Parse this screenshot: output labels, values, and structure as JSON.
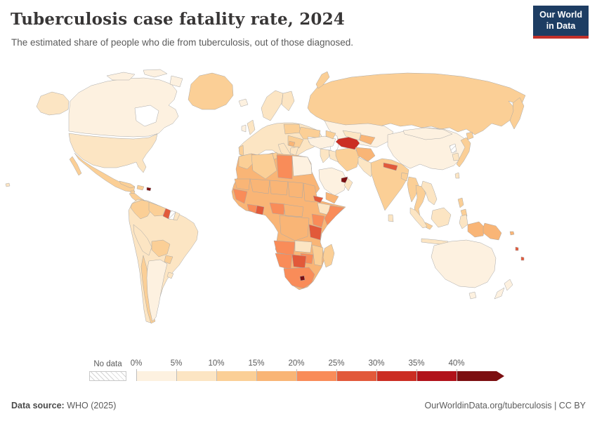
{
  "header": {
    "title": "Tuberculosis case fatality rate, 2024",
    "subtitle": "The estimated share of people who die from tuberculosis, out of those diagnosed.",
    "logo_line1": "Our World",
    "logo_line2": "in Data",
    "logo_bg": "#1d3d63",
    "logo_accent": "#c2302a"
  },
  "legend": {
    "no_data_label": "No data",
    "tick_labels": [
      "0%",
      "5%",
      "10%",
      "15%",
      "20%",
      "25%",
      "30%",
      "35%",
      "40%"
    ],
    "bin_colors": [
      "#fdf1e0",
      "#fce5c3",
      "#fbcf96",
      "#f9b576",
      "#f98c59",
      "#e2593a",
      "#cb2d23",
      "#b1121a",
      "#7c0f11"
    ]
  },
  "footer": {
    "source_label": "Data source:",
    "source_value": " WHO (2025)",
    "right_text": "OurWorldinData.org/tuberculosis | CC BY"
  },
  "chart_data": {
    "type": "choropleth",
    "title": "Tuberculosis case fatality rate",
    "year": "2024",
    "unit": "%",
    "bins": [
      {
        "range": "0-5%",
        "color": "#fdf1e0"
      },
      {
        "range": "5-10%",
        "color": "#fce5c3"
      },
      {
        "range": "10-15%",
        "color": "#fbcf96"
      },
      {
        "range": "15-20%",
        "color": "#f9b576"
      },
      {
        "range": "20-25%",
        "color": "#f98c59"
      },
      {
        "range": "25-30%",
        "color": "#e2593a"
      },
      {
        "range": "30-35%",
        "color": "#cb2d23"
      },
      {
        "range": "35-40%",
        "color": "#b1121a"
      },
      {
        "range": "40%+",
        "color": "#7c0f11"
      },
      {
        "range": "No data",
        "color": "no-data"
      }
    ],
    "countries": {
      "canada": {
        "label": "Canada",
        "range": "0-5%",
        "color": "#fdf1e0"
      },
      "usa": {
        "label": "United States",
        "range": "5-10%",
        "color": "#fce5c3"
      },
      "greenland": {
        "label": "Greenland",
        "range": "10-15%",
        "color": "#fbcf96"
      },
      "mexico": {
        "label": "Mexico",
        "range": "10-15%",
        "color": "#fbcf96"
      },
      "central_america": {
        "label": "Central America",
        "range": "10-15%",
        "color": "#fbcf96"
      },
      "cuba": {
        "label": "Cuba",
        "range": "10-15%",
        "color": "#fbcf96"
      },
      "hispaniola": {
        "label": "Haiti / Dominican Republic",
        "range": "10-15%",
        "color": "#fbcf96"
      },
      "jamaica": {
        "label": "Jamaica",
        "range": "10-15%",
        "color": "#fbcf96"
      },
      "puerto_rico": {
        "label": "Puerto Rico",
        "range": "40%+",
        "color": "#7c0f11"
      },
      "brazil": {
        "label": "Brazil",
        "range": "5-10%",
        "color": "#fce5c3"
      },
      "colombia": {
        "label": "Colombia",
        "range": "10-15%",
        "color": "#fbcf96"
      },
      "venezuela": {
        "label": "Venezuela",
        "range": "10-15%",
        "color": "#fbcf96"
      },
      "guyana": {
        "label": "Guyana",
        "range": "25-30%",
        "color": "#e2593a"
      },
      "suriname": {
        "label": "Suriname",
        "range": "No data",
        "color": "no-data"
      },
      "french_guiana": {
        "label": "French Guiana",
        "range": "5-10%",
        "color": "#fce5c3"
      },
      "peru": {
        "label": "Peru",
        "range": "5-10%",
        "color": "#fce5c3"
      },
      "bolivia": {
        "label": "Bolivia",
        "range": "10-15%",
        "color": "#fbcf96"
      },
      "paraguay": {
        "label": "Paraguay",
        "range": "10-15%",
        "color": "#fbcf96"
      },
      "chile": {
        "label": "Chile",
        "range": "10-15%",
        "color": "#fbcf96"
      },
      "argentina": {
        "label": "Argentina",
        "range": "0-5%",
        "color": "#fdf1e0"
      },
      "uruguay": {
        "label": "Uruguay",
        "range": "5-10%",
        "color": "#fce5c3"
      },
      "iceland": {
        "label": "Iceland",
        "range": "0-5%",
        "color": "#fdf1e0"
      },
      "scandinavia": {
        "label": "Norway / Sweden",
        "range": "5-10%",
        "color": "#fce5c3"
      },
      "finland": {
        "label": "Finland",
        "range": "5-10%",
        "color": "#fce5c3"
      },
      "uk": {
        "label": "United Kingdom",
        "range": "5-10%",
        "color": "#fce5c3"
      },
      "ireland": {
        "label": "Ireland",
        "range": "0-5%",
        "color": "#fdf1e0"
      },
      "europe_other": {
        "label": "Western & Central Europe",
        "range": "5-10%",
        "color": "#fce5c3"
      },
      "portugal": {
        "label": "Portugal",
        "range": "10-15%",
        "color": "#fbcf96"
      },
      "italy": {
        "label": "Italy",
        "range": "5-10%",
        "color": "#fce5c3"
      },
      "greece": {
        "label": "Greece",
        "range": "5-10%",
        "color": "#fce5c3"
      },
      "poland_baltics": {
        "label": "Poland / Baltics",
        "range": "10-15%",
        "color": "#fbcf96"
      },
      "ukraine": {
        "label": "Ukraine",
        "range": "10-15%",
        "color": "#fbcf96"
      },
      "balkans": {
        "label": "Romania / Balkans",
        "range": "10-15%",
        "color": "#fbcf96"
      },
      "serbia": {
        "label": "Serbia",
        "range": "15-20%",
        "color": "#f9b576"
      },
      "russia": {
        "label": "Russia",
        "range": "10-15%",
        "color": "#fbcf96"
      },
      "kazakhstan": {
        "label": "Kazakhstan",
        "range": "0-5%",
        "color": "#fdf1e0"
      },
      "turkey": {
        "label": "Turkey",
        "range": "0-5%",
        "color": "#fdf1e0"
      },
      "caucasus": {
        "label": "Caucasus",
        "range": "10-15%",
        "color": "#fbcf96"
      },
      "syria_levant": {
        "label": "Levant",
        "range": "5-10%",
        "color": "#fce5c3"
      },
      "iraq": {
        "label": "Iraq",
        "range": "5-10%",
        "color": "#fce5c3"
      },
      "saudi_arabia": {
        "label": "Saudi Arabia",
        "range": "0-5%",
        "color": "#fdf1e0"
      },
      "uae": {
        "label": "United Arab Emirates",
        "range": "40%+",
        "color": "#7c0f11"
      },
      "oman": {
        "label": "Oman",
        "range": "5-10%",
        "color": "#fce5c3"
      },
      "yemen": {
        "label": "Yemen",
        "range": "15-20%",
        "color": "#f9b576"
      },
      "iran": {
        "label": "Iran",
        "range": "10-15%",
        "color": "#fbcf96"
      },
      "turkmenistan": {
        "label": "Turkmenistan",
        "range": "30-35%",
        "color": "#cb2d23"
      },
      "uzbekistan": {
        "label": "Uzbekistan",
        "range": "5-10%",
        "color": "#fce5c3"
      },
      "kyrgyzstan_tajikistan": {
        "label": "Kyrgyzstan / Tajikistan",
        "range": "15-20%",
        "color": "#f9b576"
      },
      "afghanistan": {
        "label": "Afghanistan",
        "range": "15-20%",
        "color": "#f9b576"
      },
      "pakistan": {
        "label": "Pakistan",
        "range": "5-10%",
        "color": "#fce5c3"
      },
      "china": {
        "label": "China",
        "range": "0-5%",
        "color": "#fdf1e0"
      },
      "mongolia": {
        "label": "Mongolia",
        "range": "0-5%",
        "color": "#fdf1e0"
      },
      "india": {
        "label": "India",
        "range": "10-15%",
        "color": "#fbcf96"
      },
      "nepal": {
        "label": "Nepal",
        "range": "25-30%",
        "color": "#e2593a"
      },
      "bangladesh": {
        "label": "Bangladesh",
        "range": "10-15%",
        "color": "#fbcf96"
      },
      "sri_lanka": {
        "label": "Sri Lanka",
        "range": "5-10%",
        "color": "#fce5c3"
      },
      "myanmar": {
        "label": "Myanmar",
        "range": "10-15%",
        "color": "#fbcf96"
      },
      "thailand": {
        "label": "Thailand",
        "range": "10-15%",
        "color": "#fbcf96"
      },
      "vietnam_laos": {
        "label": "Vietnam / Laos",
        "range": "5-10%",
        "color": "#fce5c3"
      },
      "malaysia": {
        "label": "Malaysia",
        "range": "10-15%",
        "color": "#fbcf96"
      },
      "north_korea": {
        "label": "North Korea",
        "range": "No data",
        "color": "no-data"
      },
      "south_korea": {
        "label": "South Korea",
        "range": "5-10%",
        "color": "#fce5c3"
      },
      "japan": {
        "label": "Japan",
        "range": "10-15%",
        "color": "#fbcf96"
      },
      "taiwan": {
        "label": "Taiwan",
        "range": "5-10%",
        "color": "#fce5c3"
      },
      "philippines": {
        "label": "Philippines",
        "range": "10-15%",
        "color": "#fbcf96"
      },
      "indonesia": {
        "label": "Indonesia",
        "range": "5-10%",
        "color": "#fce5c3"
      },
      "west_papua": {
        "label": "Indonesia (Papua)",
        "range": "15-20%",
        "color": "#f9b576"
      },
      "papua_new_guinea": {
        "label": "Papua New Guinea",
        "range": "15-20%",
        "color": "#f9b576"
      },
      "australia": {
        "label": "Australia",
        "range": "0-5%",
        "color": "#fdf1e0"
      },
      "new_zealand": {
        "label": "New Zealand",
        "range": "0-5%",
        "color": "#fdf1e0"
      },
      "solomon_islands": {
        "label": "Solomon Islands",
        "range": "15-20%",
        "color": "#f9b576"
      },
      "vanuatu": {
        "label": "Vanuatu",
        "range": "25-30%",
        "color": "#e2593a"
      },
      "fiji": {
        "label": "Fiji",
        "range": "25-30%",
        "color": "#e2593a"
      },
      "africa_other": {
        "label": "Other Sub-Saharan Africa",
        "range": "15-20%",
        "color": "#f9b576"
      },
      "morocco": {
        "label": "Morocco",
        "range": "10-15%",
        "color": "#fbcf96"
      },
      "algeria": {
        "label": "Algeria",
        "range": "10-15%",
        "color": "#fbcf96"
      },
      "tunisia": {
        "label": "Tunisia",
        "range": "10-15%",
        "color": "#fbcf96"
      },
      "libya": {
        "label": "Libya",
        "range": "20-25%",
        "color": "#f98c59"
      },
      "egypt": {
        "label": "Egypt",
        "range": "0-5%",
        "color": "#fdf1e0"
      },
      "mauritania": {
        "label": "Mauritania",
        "range": "15-20%",
        "color": "#f9b576"
      },
      "mali": {
        "label": "Mali",
        "range": "15-20%",
        "color": "#f9b576"
      },
      "niger": {
        "label": "Niger",
        "range": "15-20%",
        "color": "#f9b576"
      },
      "chad": {
        "label": "Chad",
        "range": "15-20%",
        "color": "#f9b576"
      },
      "sudan": {
        "label": "Sudan",
        "range": "15-20%",
        "color": "#f9b576"
      },
      "senegal_guinea": {
        "label": "Senegal / Guinea",
        "range": "20-25%",
        "color": "#f98c59"
      },
      "cote_divoire": {
        "label": "Côte d'Ivoire",
        "range": "20-25%",
        "color": "#f98c59"
      },
      "ghana": {
        "label": "Ghana",
        "range": "25-30%",
        "color": "#e2593a"
      },
      "nigeria": {
        "label": "Nigeria",
        "range": "20-25%",
        "color": "#f98c59"
      },
      "cameroon_car": {
        "label": "Cameroon / C.A.R.",
        "range": "15-20%",
        "color": "#f9b576"
      },
      "eritrea": {
        "label": "Eritrea",
        "range": "25-30%",
        "color": "#e2593a"
      },
      "ethiopia": {
        "label": "Ethiopia",
        "range": "5-10%",
        "color": "#fce5c3"
      },
      "somalia": {
        "label": "Somalia",
        "range": "20-25%",
        "color": "#f98c59"
      },
      "kenya": {
        "label": "Kenya",
        "range": "20-25%",
        "color": "#f98c59"
      },
      "tanzania": {
        "label": "Tanzania",
        "range": "25-30%",
        "color": "#e2593a"
      },
      "drc": {
        "label": "DR Congo",
        "range": "15-20%",
        "color": "#f9b576"
      },
      "angola": {
        "label": "Angola",
        "range": "20-25%",
        "color": "#f98c59"
      },
      "zambia": {
        "label": "Zambia",
        "range": "5-10%",
        "color": "#fce5c3"
      },
      "mozambique": {
        "label": "Mozambique",
        "range": "10-15%",
        "color": "#fbcf96"
      },
      "zimbabwe": {
        "label": "Zimbabwe",
        "range": "20-25%",
        "color": "#f98c59"
      },
      "namibia": {
        "label": "Namibia",
        "range": "20-25%",
        "color": "#f98c59"
      },
      "botswana": {
        "label": "Botswana",
        "range": "25-30%",
        "color": "#e2593a"
      },
      "south_africa": {
        "label": "South Africa",
        "range": "20-25%",
        "color": "#f98c59"
      },
      "lesotho": {
        "label": "Lesotho",
        "range": "40%+",
        "color": "#7c0f11"
      },
      "madagascar": {
        "label": "Madagascar",
        "range": "10-15%",
        "color": "#fbcf96"
      }
    }
  }
}
